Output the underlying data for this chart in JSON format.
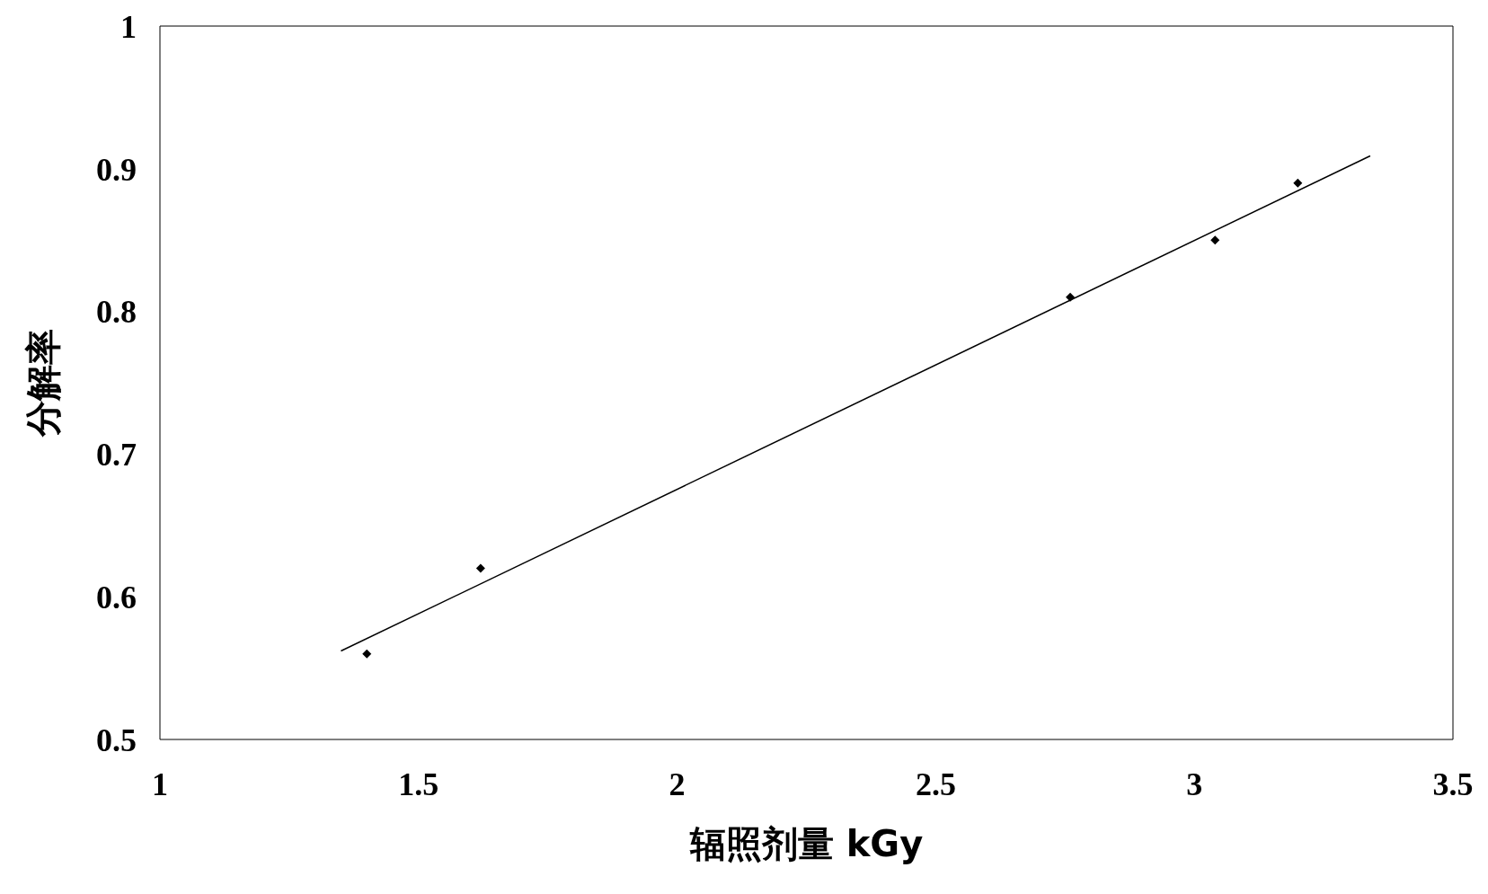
{
  "chart_data": {
    "type": "scatter",
    "xlabel": "辐照剂量 kGy",
    "ylabel": "分解率",
    "series": [
      {
        "color": "#000000",
        "marker": "diamond",
        "x": [
          1.4,
          1.62,
          2.76,
          3.04,
          3.2
        ],
        "values": [
          0.56,
          0.62,
          0.81,
          0.85,
          0.89
        ]
      },
      {
        "type": "line",
        "color": "#000000",
        "marker": "none",
        "line_style": "solid",
        "x": [
          1.35,
          3.34
        ],
        "values": [
          0.562,
          0.909
        ]
      }
    ],
    "xlim": [
      1,
      3.5
    ],
    "xticks": [
      1,
      1.5,
      2,
      2.5,
      3,
      3.5
    ],
    "ylim": [
      0.5,
      1
    ],
    "yticks": [
      0.5,
      0.6,
      0.7,
      0.8,
      0.9,
      1
    ],
    "grid": false,
    "legend": false
  }
}
